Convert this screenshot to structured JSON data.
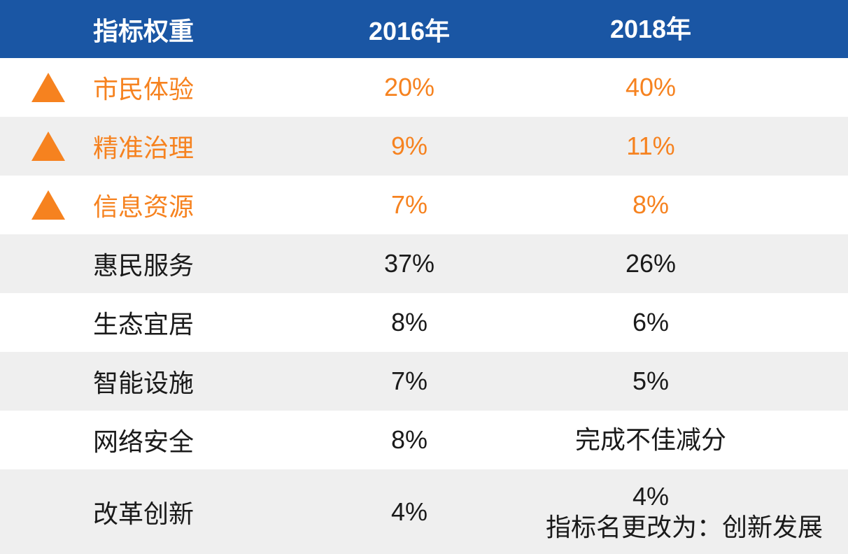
{
  "chart_data": {
    "type": "table",
    "title": "指标权重",
    "columns": [
      "指标权重",
      "2016年",
      "2018年"
    ],
    "rows": [
      [
        "市民体验",
        "20%",
        "40%"
      ],
      [
        "精准治理",
        "9%",
        "11%"
      ],
      [
        "信息资源",
        "7%",
        "8%"
      ],
      [
        "惠民服务",
        "37%",
        "26%"
      ],
      [
        "生态宜居",
        "8%",
        "6%"
      ],
      [
        "智能设施",
        "7%",
        "5%"
      ],
      [
        "网络安全",
        "8%",
        "完成不佳减分"
      ],
      [
        "改革创新",
        "4%",
        "4% 指标名更改为：创新发展"
      ]
    ],
    "highlighted_rows": [
      0,
      1,
      2
    ],
    "legend_position": "none",
    "grid": false
  },
  "table": {
    "headers": {
      "indicator": "指标权重",
      "y2016": "2016年",
      "y2018": "2018年"
    },
    "rows": [
      {
        "indicator": "市民体验",
        "v2016": "20%",
        "v2018": "40%",
        "note": "",
        "highlight": true,
        "trend_icon": "triangle-up-icon"
      },
      {
        "indicator": "精准治理",
        "v2016": "9%",
        "v2018": "11%",
        "note": "",
        "highlight": true,
        "trend_icon": "triangle-up-icon"
      },
      {
        "indicator": "信息资源",
        "v2016": "7%",
        "v2018": "8%",
        "note": "",
        "highlight": true,
        "trend_icon": "triangle-up-icon"
      },
      {
        "indicator": "惠民服务",
        "v2016": "37%",
        "v2018": "26%",
        "note": "",
        "highlight": false,
        "trend_icon": ""
      },
      {
        "indicator": "生态宜居",
        "v2016": "8%",
        "v2018": "6%",
        "note": "",
        "highlight": false,
        "trend_icon": ""
      },
      {
        "indicator": "智能设施",
        "v2016": "7%",
        "v2018": "5%",
        "note": "",
        "highlight": false,
        "trend_icon": ""
      },
      {
        "indicator": "网络安全",
        "v2016": "8%",
        "v2018": "完成不佳减分",
        "note": "",
        "highlight": false,
        "trend_icon": ""
      },
      {
        "indicator": "改革创新",
        "v2016": "4%",
        "v2018": "4%",
        "note": "指标名更改为：创新发展",
        "highlight": false,
        "trend_icon": ""
      }
    ],
    "colors": {
      "header_bg": "#1A56A4",
      "header_text": "#FFFFFF",
      "accent_orange": "#F6821F",
      "row_bg": "#FFFFFF",
      "row_alt_bg": "#EFEFEF",
      "text": "#1A1A1A"
    }
  }
}
